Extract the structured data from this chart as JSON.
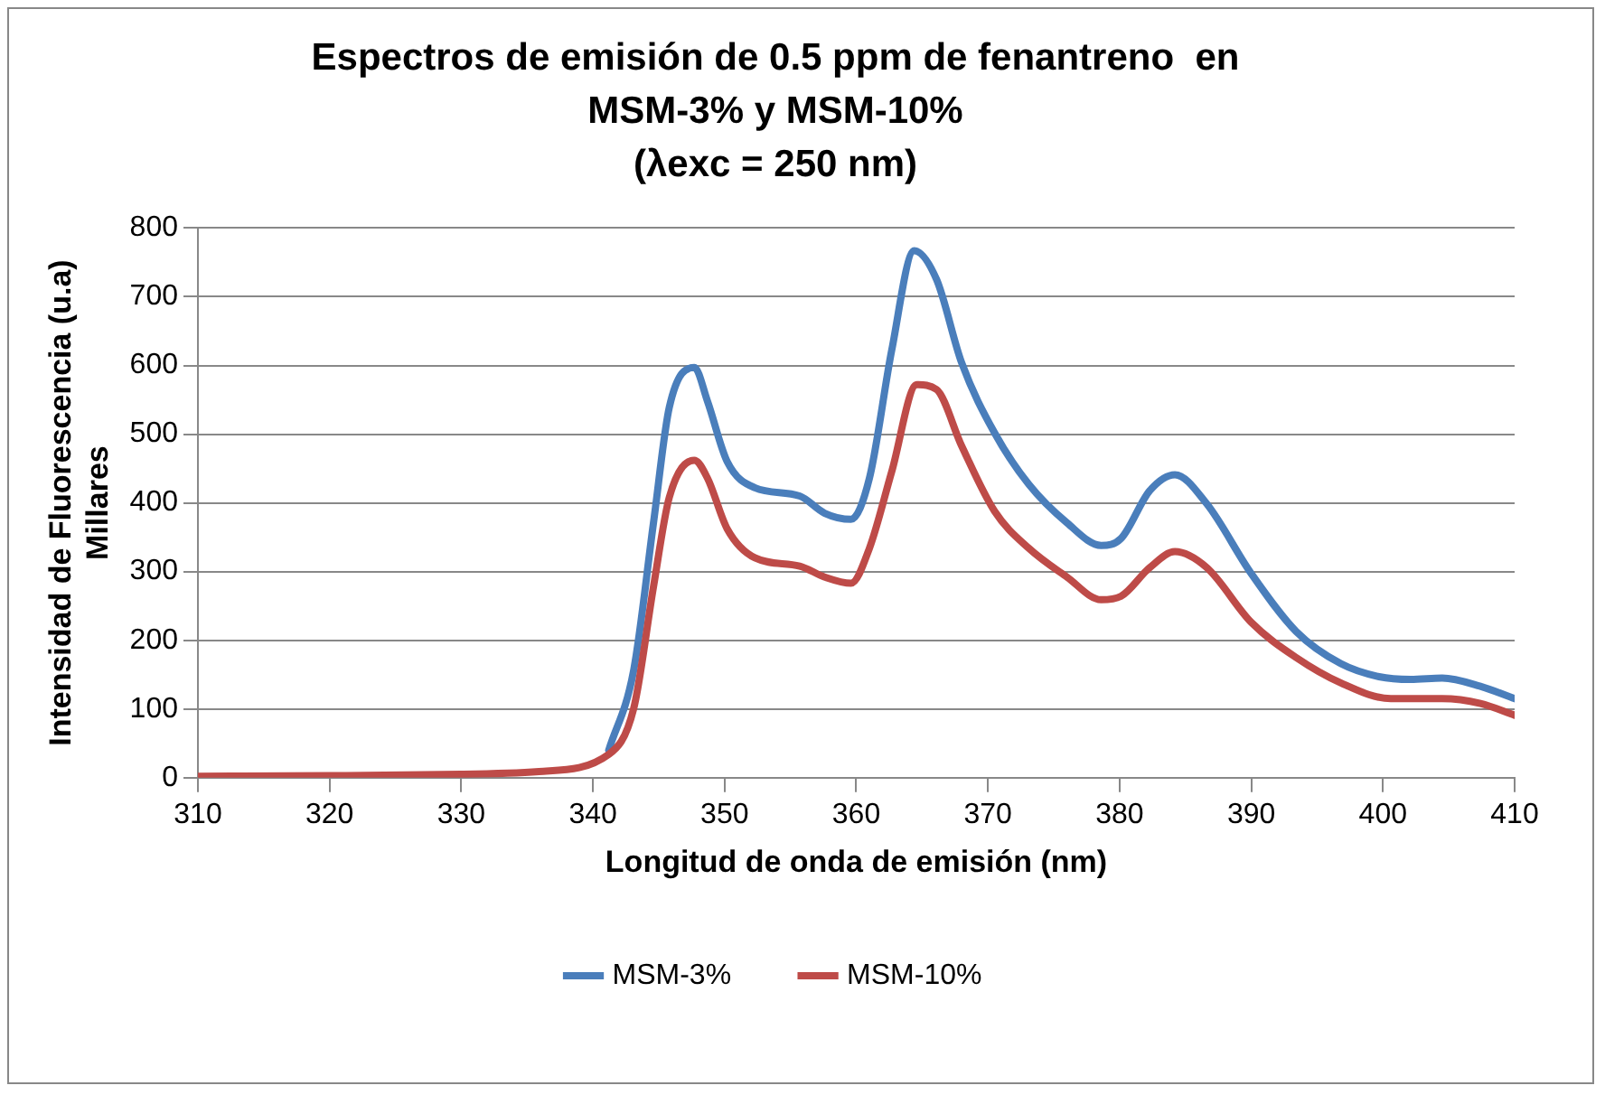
{
  "chart_data": {
    "type": "line",
    "title": "Espectros de emisión de 0.5 ppm de fenantreno  en\nMSM-3% y MSM-10%\n(λexc = 250 nm)",
    "xlabel": "Longitud de onda de emisión (nm)",
    "ylabel": "Intensidad de Fluorescencia (u.a)",
    "annotations": [
      "Millares"
    ],
    "xlim": [
      310,
      410
    ],
    "xticks": [
      310,
      320,
      330,
      340,
      350,
      360,
      370,
      380,
      390,
      400,
      410
    ],
    "ylim": [
      0,
      800
    ],
    "yticks": [
      0,
      100,
      200,
      300,
      400,
      500,
      600,
      700,
      800
    ],
    "grid": "y",
    "legend": "bottom",
    "marker": "none",
    "line_style": "solid",
    "series": [
      {
        "name": "MSM-3%",
        "color": "#4a7ebb",
        "x": [
          341.2,
          343.1,
          344.6,
          345.8,
          347.7,
          348.7,
          350.2,
          352.3,
          355.7,
          357.6,
          359.6,
          361,
          362.7,
          364.4,
          366.1,
          368,
          370.5,
          373.1,
          376,
          378.6,
          380.1,
          382.3,
          384.2,
          386.6,
          390,
          393.4,
          396.8,
          399.7,
          402.1,
          404.5,
          407.4,
          410
        ],
        "values": [
          40,
          157,
          371,
          539,
          597,
          548,
          460,
          422,
          410,
          385,
          376,
          436,
          623,
          767,
          725,
          604,
          502,
          427,
          371,
          338,
          348,
          418,
          441,
          399,
          297,
          213,
          166,
          147,
          143,
          145,
          133,
          115
        ]
      },
      {
        "name": "MSM-10%",
        "color": "#be4b48",
        "x": [
          310,
          320,
          330,
          335.9,
          341.2,
          343.1,
          344.6,
          345.8,
          347.7,
          348.7,
          350.2,
          352.3,
          355.7,
          357.6,
          359.6,
          361,
          362.7,
          364.6,
          366.1,
          368,
          370.5,
          373.1,
          376,
          378.6,
          380.1,
          382.3,
          384.2,
          386.6,
          390,
          393.4,
          396.8,
          400.6,
          404.5,
          407.4,
          410
        ],
        "values": [
          2,
          3,
          5,
          9,
          34,
          101,
          278,
          408,
          462,
          436,
          362,
          320,
          308,
          292,
          283,
          334,
          446,
          572,
          565,
          483,
          388,
          334,
          292,
          259,
          264,
          306,
          329,
          306,
          226,
          175,
          138,
          115,
          115,
          108,
          91
        ]
      }
    ]
  }
}
